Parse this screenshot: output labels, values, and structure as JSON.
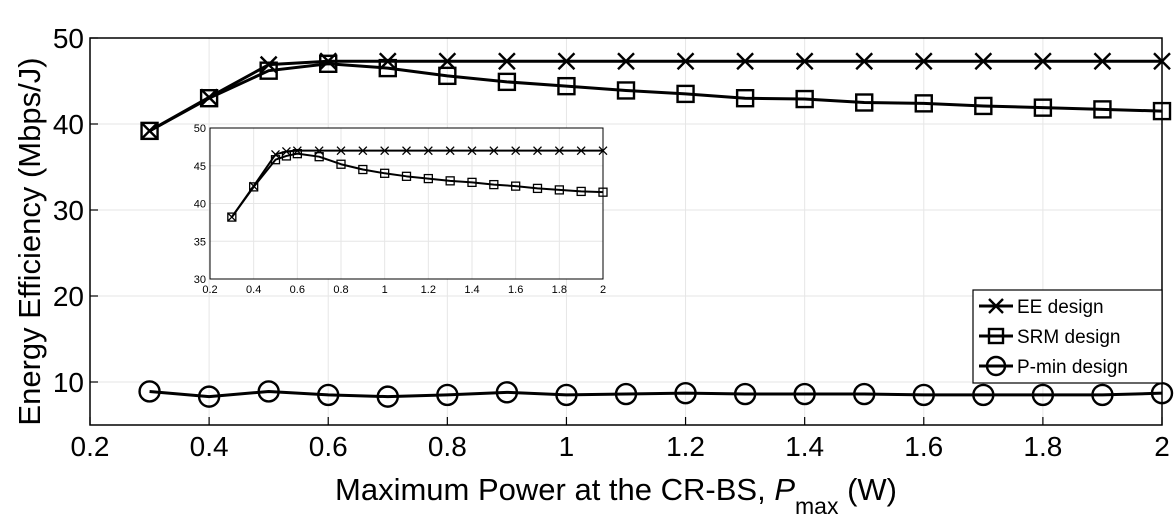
{
  "chart_data": [
    {
      "type": "line",
      "title": "",
      "xlabel_main": "Maximum Power at the CR-BS, ",
      "xlabel_var": "P",
      "xlabel_sub": "max",
      "xlabel_unit": " (W)",
      "ylabel": "Energy Efficiency (Mbps/J)",
      "xlim": [
        0.2,
        2
      ],
      "ylim": [
        5,
        50
      ],
      "xticks": [
        0.2,
        0.4,
        0.6,
        0.8,
        1,
        1.2,
        1.4,
        1.6,
        1.8,
        2
      ],
      "xtick_labels": [
        "0.2",
        "0.4",
        "0.6",
        "0.8",
        "1",
        "1.2",
        "1.4",
        "1.6",
        "1.8",
        "2"
      ],
      "yticks": [
        10,
        20,
        30,
        40,
        50
      ],
      "ytick_labels": [
        "10",
        "20",
        "30",
        "40",
        "50"
      ],
      "grid": true,
      "legend_position": "bottom-right",
      "x": [
        0.3,
        0.4,
        0.5,
        0.6,
        0.7,
        0.8,
        0.9,
        1.0,
        1.1,
        1.2,
        1.3,
        1.4,
        1.5,
        1.6,
        1.7,
        1.8,
        1.9,
        2.0
      ],
      "series": [
        {
          "name": "EE design",
          "marker": "x",
          "values": [
            39.2,
            43.1,
            46.9,
            47.3,
            47.3,
            47.3,
            47.3,
            47.3,
            47.3,
            47.3,
            47.3,
            47.3,
            47.3,
            47.3,
            47.3,
            47.3,
            47.3,
            47.3
          ]
        },
        {
          "name": "SRM design",
          "marker": "square",
          "values": [
            39.2,
            43.0,
            46.2,
            47.0,
            46.5,
            45.6,
            44.9,
            44.4,
            43.9,
            43.5,
            43.0,
            42.9,
            42.5,
            42.4,
            42.1,
            41.9,
            41.7,
            41.5
          ]
        },
        {
          "name": "P-min design",
          "marker": "circle",
          "values": [
            8.9,
            8.3,
            8.9,
            8.5,
            8.3,
            8.5,
            8.8,
            8.5,
            8.6,
            8.7,
            8.6,
            8.6,
            8.6,
            8.5,
            8.5,
            8.5,
            8.5,
            8.7
          ]
        }
      ]
    },
    {
      "type": "line",
      "title": "inset",
      "xlim": [
        0.2,
        2
      ],
      "ylim": [
        30,
        50
      ],
      "xticks": [
        0.2,
        0.4,
        0.6,
        0.8,
        1,
        1.2,
        1.4,
        1.6,
        1.8,
        2
      ],
      "xtick_labels": [
        "0.2",
        "0.4",
        "0.6",
        "0.8",
        "1",
        "1.2",
        "1.4",
        "1.6",
        "1.8",
        "2"
      ],
      "yticks": [
        30,
        35,
        40,
        45,
        50
      ],
      "ytick_labels": [
        "30",
        "35",
        "40",
        "45",
        "50"
      ],
      "grid": true,
      "x_ee": [
        0.3,
        0.4,
        0.5,
        0.55,
        0.6,
        0.7,
        0.8,
        0.9,
        1.0,
        1.1,
        1.2,
        1.3,
        1.4,
        1.5,
        1.6,
        1.7,
        1.8,
        1.9,
        2.0
      ],
      "x_srm": [
        0.3,
        0.4,
        0.5,
        0.55,
        0.6,
        0.7,
        0.8,
        0.9,
        1.0,
        1.1,
        1.2,
        1.3,
        1.4,
        1.5,
        1.6,
        1.7,
        1.8,
        1.9,
        2.0
      ],
      "series": [
        {
          "name": "EE design",
          "marker": "x",
          "values": [
            38.2,
            42.3,
            46.5,
            46.9,
            47.0,
            47.0,
            47.0,
            47.0,
            47.0,
            47.0,
            47.0,
            47.0,
            47.0,
            47.0,
            47.0,
            47.0,
            47.0,
            47.0,
            47.0
          ]
        },
        {
          "name": "SRM design",
          "marker": "square",
          "values": [
            38.2,
            42.2,
            45.8,
            46.3,
            46.6,
            46.2,
            45.2,
            44.5,
            44.0,
            43.6,
            43.3,
            43.0,
            42.8,
            42.5,
            42.3,
            42.0,
            41.8,
            41.6,
            41.5
          ]
        }
      ]
    }
  ]
}
